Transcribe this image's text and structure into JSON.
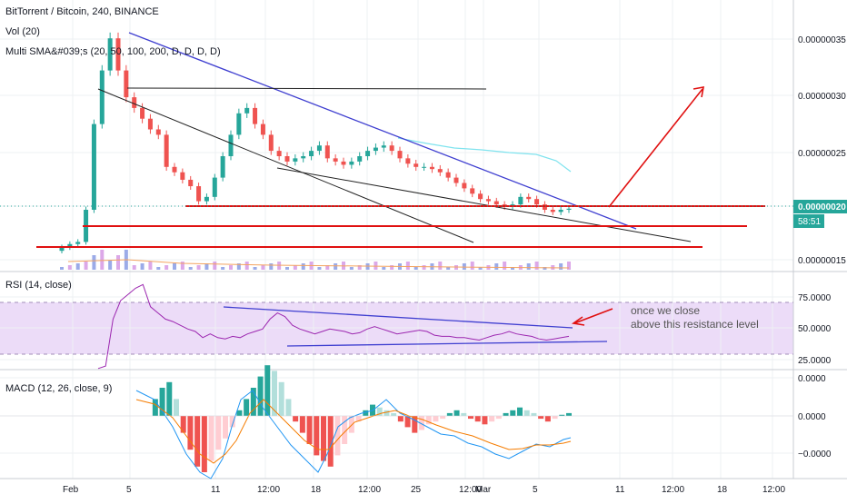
{
  "header": {
    "symbol": "BitTorrent / Bitcoin, 240, BINANCE",
    "vol_label": "Vol (20)",
    "sma_label": "Multi SMA&#039;s (20, 50, 100, 200, D, D, D, D)"
  },
  "price_axis": {
    "ticks": [
      "0.00000035",
      "0.00000030",
      "0.00000025",
      "0.00000015"
    ],
    "current_price": "0.00000020",
    "countdown": "58:51"
  },
  "rsi": {
    "label": "RSI (14, close)",
    "ticks": [
      "75.0000",
      "50.0000",
      "25.0000"
    ]
  },
  "macd": {
    "label": "MACD (12, 26, close, 9)",
    "ticks": [
      "0.0000",
      "0.0000",
      "−0.0000"
    ]
  },
  "time_axis": {
    "labels": [
      "Feb",
      "5",
      "11",
      "12:00",
      "18",
      "12:00",
      "25",
      "12:00",
      "Mar",
      "5",
      "11",
      "12:00",
      "18",
      "12:00"
    ]
  },
  "annotation": {
    "line1": "once we close",
    "line2": "above this resistance level"
  },
  "colors": {
    "up": "#26a69a",
    "down": "#ef5350",
    "rsi_line": "#9c27b0",
    "rsi_band": "#e9d8f7",
    "trend_blue": "#3f3fd0",
    "red_line": "#e01010",
    "cyan_sma": "#7fe3ee"
  },
  "chart_data": [
    {
      "type": "candlestick",
      "x_labels": [
        "Feb",
        "5",
        "11",
        "12:00",
        "18",
        "12:00",
        "25",
        "12:00",
        "Mar",
        "5",
        "11",
        "12:00",
        "18",
        "12:00"
      ],
      "y_ticks": [
        3.5e-07,
        3e-07,
        2.5e-07,
        1.5e-07
      ],
      "current_price": 2e-07,
      "close_series": [
        1.65e-07,
        1.68e-07,
        1.7e-07,
        2e-07,
        2.8e-07,
        3.3e-07,
        3.6e-07,
        3.3e-07,
        3.05e-07,
        2.95e-07,
        2.85e-07,
        2.75e-07,
        2.7e-07,
        2.4e-07,
        2.35e-07,
        2.28e-07,
        2.22e-07,
        2.08e-07,
        2.12e-07,
        2.3e-07,
        2.5e-07,
        2.7e-07,
        2.9e-07,
        2.95e-07,
        2.8e-07,
        2.7e-07,
        2.55e-07,
        2.5e-07,
        2.45e-07,
        2.48e-07,
        2.5e-07,
        2.55e-07,
        2.6e-07,
        2.48e-07,
        2.45e-07,
        2.42e-07,
        2.45e-07,
        2.5e-07,
        2.55e-07,
        2.58e-07,
        2.6e-07,
        2.55e-07,
        2.48e-07,
        2.43e-07,
        2.4e-07,
        2.4e-07,
        2.38e-07,
        2.35e-07,
        2.3e-07,
        2.25e-07,
        2.2e-07,
        2.15e-07,
        2.1e-07,
        2.08e-07,
        2.05e-07,
        2.03e-07,
        2.05e-07,
        2.12e-07,
        2.1e-07,
        2.05e-07,
        2e-07,
        1.98e-07,
        2e-07,
        2.01e-07
      ]
    },
    {
      "type": "line",
      "title": "RSI (14, close)",
      "y_ticks": [
        75,
        50,
        25
      ],
      "values": [
        20,
        22,
        60,
        75,
        80,
        85,
        88,
        70,
        65,
        60,
        58,
        55,
        52,
        50,
        45,
        48,
        45,
        44,
        46,
        45,
        48,
        50,
        52,
        60,
        65,
        62,
        55,
        52,
        50,
        48,
        50,
        52,
        51,
        50,
        48,
        49,
        52,
        54,
        52,
        50,
        48,
        49,
        50,
        51,
        50,
        47,
        46,
        46,
        45,
        45,
        44,
        43,
        45,
        47,
        48,
        50,
        48,
        47,
        46,
        44,
        43,
        44,
        45,
        46
      ]
    },
    {
      "type": "bar",
      "title": "MACD (12, 26, close, 9)",
      "y_ticks": [
        "0.0000",
        "0.0000",
        "−0.0000"
      ],
      "histogram": [
        0,
        0,
        0,
        0,
        0.3,
        0.5,
        0.6,
        0.3,
        -0.3,
        -0.6,
        -0.9,
        -1.0,
        -0.8,
        -0.6,
        -0.4,
        -0.2,
        0.1,
        0.3,
        0.5,
        0.7,
        0.9,
        0.8,
        0.6,
        0.3,
        -0.1,
        -0.3,
        -0.5,
        -0.7,
        -0.8,
        -0.9,
        -0.7,
        -0.5,
        -0.3,
        -0.1,
        0.1,
        0.2,
        0.15,
        0.1,
        0.05,
        -0.1,
        -0.2,
        -0.3,
        -0.25,
        -0.15,
        -0.1,
        -0.05,
        0.05,
        0.1,
        0.05,
        -0.05,
        -0.1,
        -0.15,
        -0.1,
        -0.05,
        0.05,
        0.1,
        0.15,
        0.1,
        0.05,
        -0.05,
        -0.1,
        -0.05,
        0.02,
        0.05
      ]
    }
  ]
}
